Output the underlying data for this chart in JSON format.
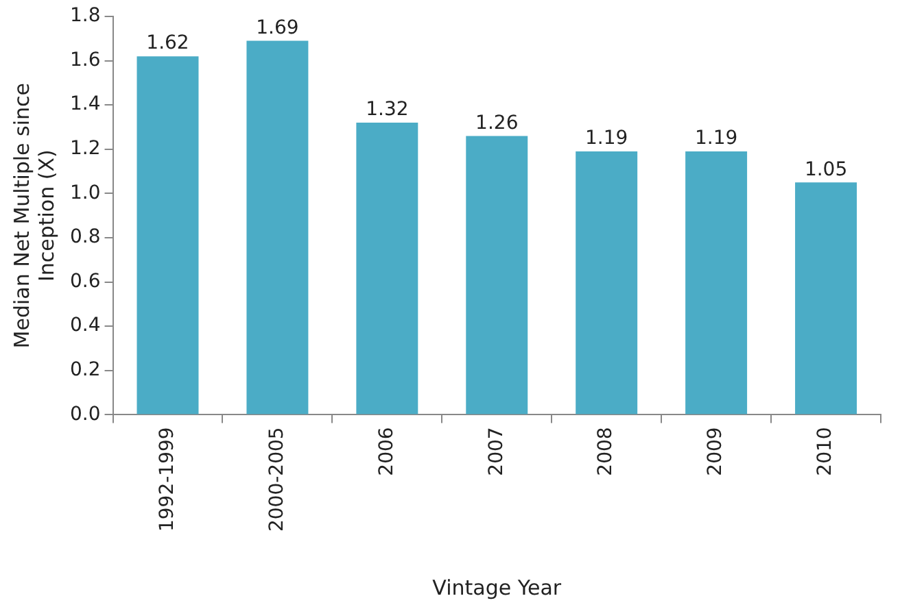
{
  "chart_data": {
    "type": "bar",
    "xlabel": "Vintage Year",
    "ylabel": "Median Net Multiple since Inception (X)",
    "categories": [
      "1992-1999",
      "2000-2005",
      "2006",
      "2007",
      "2008",
      "2009",
      "2010"
    ],
    "values": [
      1.62,
      1.69,
      1.32,
      1.26,
      1.19,
      1.19,
      1.05
    ],
    "color": "#4bacc6",
    "ylim": [
      0,
      1.8
    ],
    "yticks": [
      {
        "value": 0,
        "label": "0.0"
      },
      0.2,
      0.4,
      0.6,
      0.8,
      {
        "value": 1,
        "label": "1.0"
      },
      1.2,
      1.4,
      1.6,
      1.8
    ],
    "grid": false,
    "data_labels": true,
    "legend": false
  }
}
